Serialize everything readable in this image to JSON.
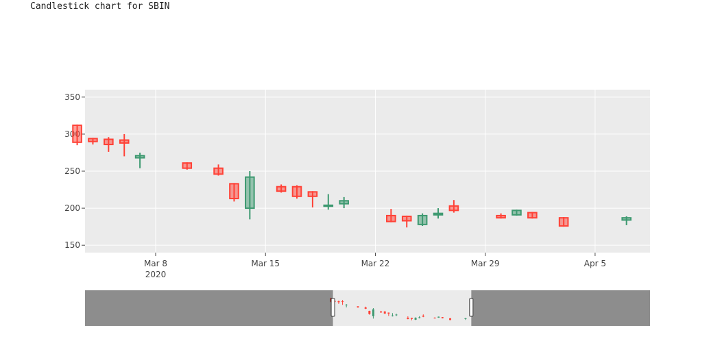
{
  "page": {
    "title": "Candlestick chart for SBIN"
  },
  "chart_data": {
    "type": "candlestick",
    "title": "",
    "xlabel": "",
    "ylabel": "",
    "ylim": [
      140,
      360
    ],
    "xlim": [
      "2020-03-03T12:00",
      "2020-04-08T12:00"
    ],
    "yticks": [
      150,
      200,
      250,
      300,
      350
    ],
    "xticks": [
      {
        "date": "2020-03-08",
        "label": "Mar 8",
        "sublabel": "2020"
      },
      {
        "date": "2020-03-15",
        "label": "Mar 15",
        "sublabel": ""
      },
      {
        "date": "2020-03-22",
        "label": "Mar 22",
        "sublabel": ""
      },
      {
        "date": "2020-03-29",
        "label": "Mar 29",
        "sublabel": ""
      },
      {
        "date": "2020-04-05",
        "label": "Apr 5",
        "sublabel": ""
      }
    ],
    "increasing_color": "#3D9970",
    "decreasing_color": "#FF4136",
    "plot_background": "#EBEBEB",
    "grid": true,
    "range_slider": {
      "visible": true,
      "full_range": [
        "2019-12-30",
        "2020-05-25"
      ],
      "selected_range": [
        "2020-03-03T12:00",
        "2020-04-08T12:00"
      ]
    },
    "candles": [
      {
        "date": "2020-03-03",
        "open": 312,
        "high": 313,
        "low": 285,
        "close": 289
      },
      {
        "date": "2020-03-04",
        "open": 294,
        "high": 295,
        "low": 286,
        "close": 290
      },
      {
        "date": "2020-03-05",
        "open": 293,
        "high": 296,
        "low": 276,
        "close": 286
      },
      {
        "date": "2020-03-06",
        "open": 292,
        "high": 300,
        "low": 270,
        "close": 288
      },
      {
        "date": "2020-03-07",
        "open": 268,
        "high": 275,
        "low": 254,
        "close": 271
      },
      {
        "date": "2020-03-10",
        "open": 261,
        "high": 262,
        "low": 252,
        "close": 254
      },
      {
        "date": "2020-03-12",
        "open": 254,
        "high": 259,
        "low": 244,
        "close": 246
      },
      {
        "date": "2020-03-13",
        "open": 233,
        "high": 234,
        "low": 209,
        "close": 213
      },
      {
        "date": "2020-03-14",
        "open": 200,
        "high": 250,
        "low": 185,
        "close": 242
      },
      {
        "date": "2020-03-16",
        "open": 229,
        "high": 232,
        "low": 221,
        "close": 223
      },
      {
        "date": "2020-03-17",
        "open": 229,
        "high": 231,
        "low": 213,
        "close": 216
      },
      {
        "date": "2020-03-18",
        "open": 222,
        "high": 223,
        "low": 201,
        "close": 216
      },
      {
        "date": "2020-03-19",
        "open": 203,
        "high": 219,
        "low": 198,
        "close": 204
      },
      {
        "date": "2020-03-20",
        "open": 206,
        "high": 215,
        "low": 200,
        "close": 210
      },
      {
        "date": "2020-03-23",
        "open": 190,
        "high": 199,
        "low": 181,
        "close": 182
      },
      {
        "date": "2020-03-24",
        "open": 189,
        "high": 190,
        "low": 174,
        "close": 183
      },
      {
        "date": "2020-03-25",
        "open": 178,
        "high": 193,
        "low": 176,
        "close": 190
      },
      {
        "date": "2020-03-26",
        "open": 191,
        "high": 200,
        "low": 186,
        "close": 193
      },
      {
        "date": "2020-03-27",
        "open": 203,
        "high": 211,
        "low": 194,
        "close": 197
      },
      {
        "date": "2020-03-30",
        "open": 190,
        "high": 193,
        "low": 186,
        "close": 187
      },
      {
        "date": "2020-03-31",
        "open": 191,
        "high": 198,
        "low": 190,
        "close": 197
      },
      {
        "date": "2020-04-01",
        "open": 194,
        "high": 195,
        "low": 186,
        "close": 187
      },
      {
        "date": "2020-04-03",
        "open": 187,
        "high": 188,
        "low": 175,
        "close": 176
      },
      {
        "date": "2020-04-07",
        "open": 184,
        "high": 189,
        "low": 177,
        "close": 187
      }
    ]
  }
}
